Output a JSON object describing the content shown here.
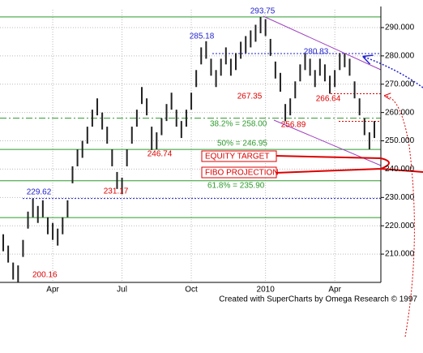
{
  "chart_data": {
    "type": "hlc",
    "categories": [
      null,
      null,
      null,
      null,
      null,
      null,
      null,
      null,
      null,
      null,
      "Apr",
      null,
      null,
      null,
      null,
      null,
      null,
      null,
      null,
      null,
      null,
      null,
      null,
      null,
      "Jul",
      null,
      null,
      null,
      null,
      null,
      null,
      null,
      null,
      null,
      null,
      null,
      null,
      null,
      "Oct",
      null,
      null,
      null,
      null,
      null,
      null,
      null,
      null,
      null,
      null,
      null,
      null,
      null,
      null,
      "2010",
      null,
      null,
      null,
      null,
      null,
      null,
      null,
      null,
      null,
      null,
      null,
      null,
      null,
      "Apr",
      null,
      null,
      null,
      null,
      null,
      null,
      null,
      null
    ],
    "high": [
      217,
      213,
      207,
      206,
      215,
      225,
      229.62,
      227,
      229,
      223,
      221,
      219,
      223,
      229,
      241,
      247,
      250,
      255,
      261,
      265,
      260,
      255,
      247,
      239,
      237,
      247,
      255,
      261,
      269,
      265,
      255,
      253,
      258,
      263,
      267,
      261,
      257,
      261,
      267,
      275,
      283,
      285.18,
      279,
      275,
      279,
      283,
      279,
      281,
      285,
      287,
      289,
      291,
      293.75,
      293,
      286,
      278,
      274,
      263,
      265,
      271,
      277,
      281,
      279,
      275,
      279,
      277,
      273,
      275,
      281,
      280.83,
      279,
      271,
      265,
      258,
      253,
      257
    ],
    "low": [
      211,
      207,
      201,
      200.16,
      209,
      219,
      223,
      221,
      223,
      217,
      215,
      213,
      217,
      223,
      235,
      241,
      244,
      249,
      255,
      259,
      254,
      249,
      241,
      233,
      231.17,
      241,
      249,
      255,
      263,
      259,
      246.74,
      247,
      252,
      257,
      261,
      255,
      251,
      255,
      261,
      269,
      277,
      279,
      273,
      269,
      273,
      277,
      273,
      275,
      279,
      281,
      283,
      285,
      288,
      287,
      280,
      272,
      267.35,
      256.89,
      259,
      265,
      271,
      275,
      273,
      269,
      273,
      271,
      266.64,
      269,
      275,
      276,
      273,
      265,
      259,
      252,
      247,
      251
    ],
    "bar_color": "#222222",
    "ylim": [
      200,
      296.3
    ],
    "yticks": [
      {
        "value": 210,
        "label": "210.000"
      },
      {
        "value": 220,
        "label": "220.000"
      },
      {
        "value": 230,
        "label": "230.000"
      },
      {
        "value": 240,
        "label": "240.000"
      },
      {
        "value": 250,
        "label": "250.000"
      },
      {
        "value": 260,
        "label": "260.000"
      },
      {
        "value": 270,
        "label": "270.000"
      },
      {
        "value": 280,
        "label": "280.000"
      },
      {
        "value": 290,
        "label": "290.000"
      }
    ],
    "grid": true,
    "levels": [
      {
        "value": 293.75,
        "color": "#2e9a2e",
        "style": "solid"
      },
      {
        "value": 258.0,
        "color": "#2e9a2e",
        "style": "dashdot"
      },
      {
        "value": 246.95,
        "color": "#2e9a2e",
        "style": "solid"
      },
      {
        "value": 235.9,
        "color": "#2e9a2e",
        "style": "solid"
      },
      {
        "value": 222.9,
        "color": "#2e9a2e",
        "style": "solid"
      },
      {
        "value": 280.83,
        "color": "#2222cc",
        "style": "dotted"
      },
      {
        "value": 229.62,
        "color": "#2222cc",
        "style": "dotted"
      },
      {
        "value": 266.64,
        "color": "#dd0000",
        "style": "dotted"
      },
      {
        "value": 256.89,
        "color": "#dd0000",
        "style": "dotted"
      }
    ],
    "annotations": [
      {
        "text": "293.75",
        "color": "#2222cc"
      },
      {
        "text": "285.18",
        "color": "#2222cc"
      },
      {
        "text": "280.83",
        "color": "#2222cc"
      },
      {
        "text": "229.62",
        "color": "#2222cc"
      },
      {
        "text": "267.35",
        "color": "#dd0000"
      },
      {
        "text": "266.64",
        "color": "#dd0000"
      },
      {
        "text": "256.89",
        "color": "#dd0000"
      },
      {
        "text": "246.74",
        "color": "#dd0000"
      },
      {
        "text": "231.17",
        "color": "#dd0000"
      },
      {
        "text": "200.16",
        "color": "#dd0000"
      },
      {
        "text": "38.2% = 258.00",
        "color": "#2e9a2e"
      },
      {
        "text": "50% = 246.95",
        "color": "#2e9a2e"
      },
      {
        "text": "61.8% = 235.90",
        "color": "#2e9a2e"
      }
    ],
    "boxes": [
      "EQUITY TARGET",
      "FIBO PROJECTION"
    ],
    "credit": "Created with SuperCharts by Omega Research © 1997"
  }
}
